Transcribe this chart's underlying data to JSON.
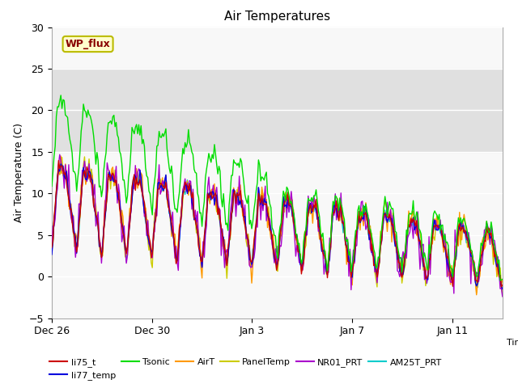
{
  "title": "Air Temperatures",
  "ylabel": "Air Temperature (C)",
  "xlabel": "Time",
  "ylim": [
    -5,
    30
  ],
  "yticks": [
    -5,
    0,
    5,
    10,
    15,
    20,
    25,
    30
  ],
  "series_colors": {
    "li75_t": "#cc0000",
    "li77_temp": "#0000dd",
    "Tsonic": "#00dd00",
    "AirT": "#ff9900",
    "PanelTemp": "#cccc00",
    "NR01_PRT": "#aa00cc",
    "AM25T_PRT": "#00cccc"
  },
  "annotation_text": "WP_flux",
  "annotation_bg": "#ffffcc",
  "annotation_border": "#bbbb00",
  "annotation_text_color": "#880000",
  "bg_band_color": "#e0e0e0",
  "bg_band_ymin": 15,
  "bg_band_ymax": 25,
  "ax_bg_color": "#f8f8f8",
  "shown_positions": [
    0,
    4,
    8,
    12,
    16
  ],
  "shown_labels": [
    "Dec 26",
    "Dec 30",
    "Jan 3",
    "Jan 7",
    "Jan 11"
  ],
  "xlim": [
    0,
    18
  ]
}
